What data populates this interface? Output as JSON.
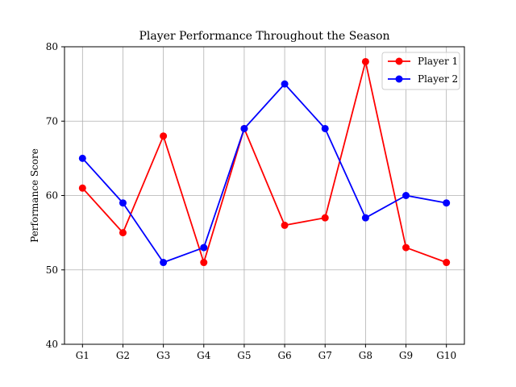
{
  "chart_data": {
    "type": "line",
    "title": "Player Performance Throughout the Season",
    "xlabel": "",
    "ylabel": "Performance Score",
    "categories": [
      "G1",
      "G2",
      "G3",
      "G4",
      "G5",
      "G6",
      "G7",
      "G8",
      "G9",
      "G10"
    ],
    "ylim": [
      40,
      80
    ],
    "yticks": [
      40,
      50,
      60,
      70,
      80
    ],
    "grid": true,
    "legend_position": "top-right",
    "series": [
      {
        "name": "Player 1",
        "color": "#ff0000",
        "marker": "circle",
        "values": [
          61,
          55,
          68,
          51,
          69,
          56,
          57,
          78,
          53,
          51
        ]
      },
      {
        "name": "Player 2",
        "color": "#0000ff",
        "marker": "circle",
        "values": [
          65,
          59,
          51,
          53,
          69,
          75,
          69,
          57,
          60,
          59
        ]
      }
    ]
  }
}
